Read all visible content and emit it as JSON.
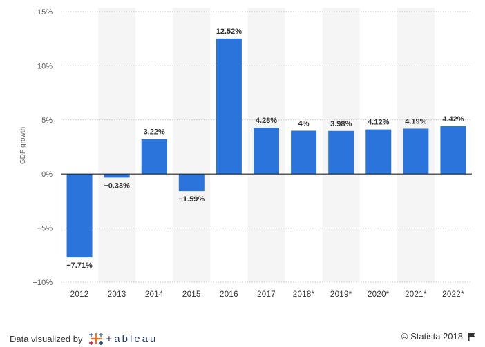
{
  "chart_data": {
    "type": "bar",
    "categories": [
      "2012",
      "2013",
      "2014",
      "2015",
      "2016",
      "2017",
      "2018*",
      "2019*",
      "2020*",
      "2021*",
      "2022*"
    ],
    "values": [
      -7.71,
      -0.33,
      3.22,
      -1.59,
      12.52,
      4.28,
      4,
      3.98,
      4.12,
      4.19,
      4.42
    ],
    "data_labels": [
      "−7.71%",
      "−0.33%",
      "3.22%",
      "−1.59%",
      "12.52%",
      "4.28%",
      "4%",
      "3.98%",
      "4.12%",
      "4.19%",
      "4.42%"
    ],
    "ylabel": "GDP growth",
    "ylim": [
      -10,
      15
    ],
    "yticks": [
      15,
      10,
      5,
      0,
      -5,
      -10
    ],
    "ytick_labels": [
      "15%",
      "10%",
      "5%",
      "0%",
      "−5%",
      "−10%"
    ],
    "grid": true,
    "bar_color": "#2a74db",
    "band_color": "#f5f5f5"
  },
  "footer": {
    "left_text": "Data visualized by",
    "logo_text": "+ableau",
    "logo_icon": "tableau-plus-icon",
    "right_text": "© Statista 2018",
    "right_icon": "flag-icon"
  }
}
